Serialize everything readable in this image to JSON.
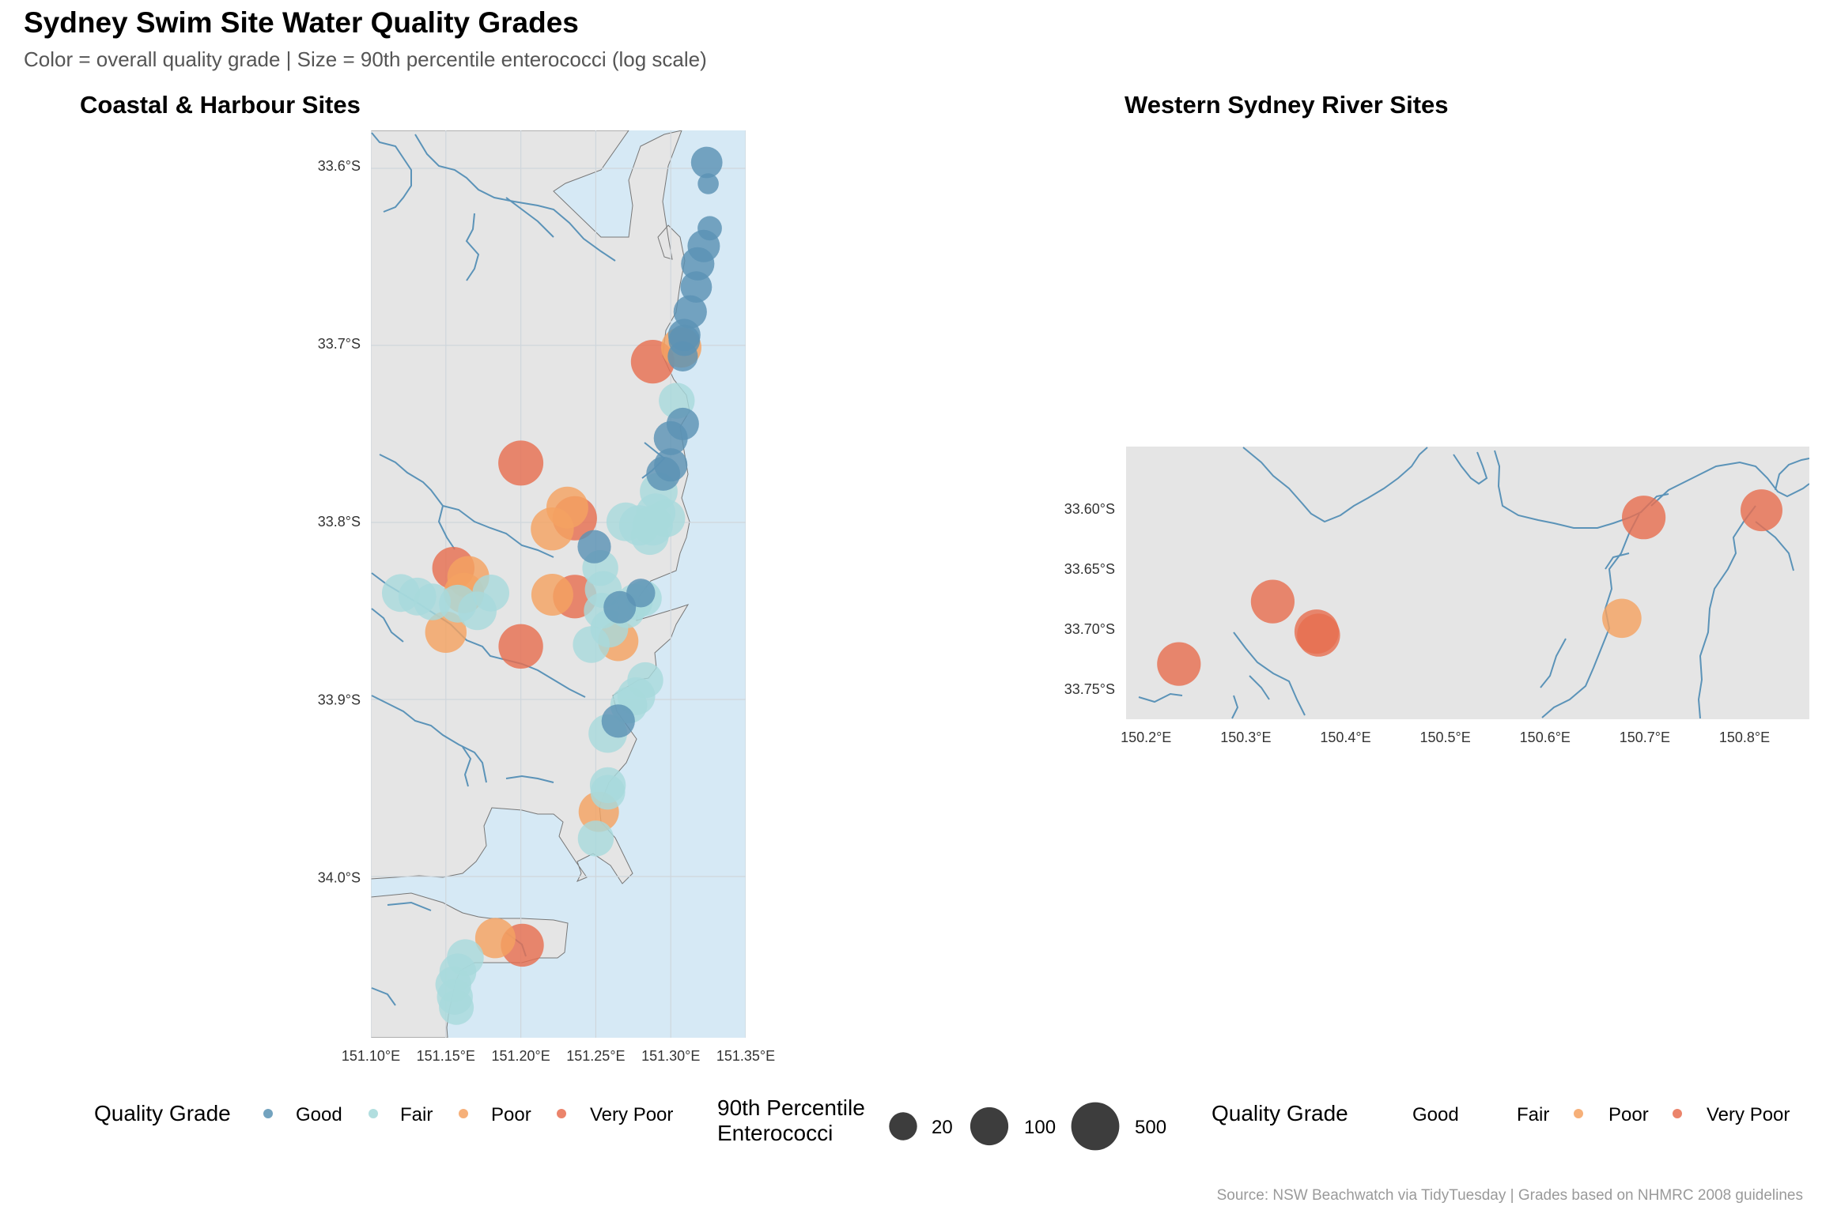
{
  "title": "Sydney Swim Site Water Quality Grades",
  "subtitle": "Color = overall quality grade | Size = 90th percentile enterococci (log scale)",
  "caption": "Source: NSW Beachwatch via TidyTuesday | Grades based on NHMRC 2008 guidelines",
  "colors": {
    "Good": "#5b93b4",
    "Fair": "#a8dadc",
    "Poor": "#f4a261",
    "Very Poor": "#e76f51",
    "land": "#e5e5e5",
    "water": "#d6e9f5",
    "rivers": "#5b93b8",
    "grid": "#cfd6dc"
  },
  "legend": {
    "grade_title": "Quality Grade",
    "grade_labels": [
      "Good",
      "Fair",
      "Poor",
      "Very Poor"
    ],
    "size_title_line1": "90th Percentile",
    "size_title_line2": "Enterococci",
    "size_values": [
      20,
      100,
      500
    ],
    "size_labels": [
      "20",
      "100",
      "500"
    ],
    "grade_title_2": "Quality Grade",
    "grade_labels_2": [
      "Good",
      "Fair",
      "Poor",
      "Very Poor"
    ]
  },
  "chart_data": [
    {
      "type": "scatter",
      "title": "Coastal & Harbour Sites",
      "xlim": [
        151.1,
        151.35
      ],
      "ylim": [
        -34.09,
        -33.58
      ],
      "x_ticks": [
        151.1,
        151.15,
        151.2,
        151.25,
        151.3,
        151.35
      ],
      "x_tick_labels": [
        "151.10°E",
        "151.15°E",
        "151.20°E",
        "151.25°E",
        "151.30°E",
        "151.35°E"
      ],
      "y_ticks": [
        -33.6,
        -33.7,
        -33.8,
        -33.9,
        -34.0
      ],
      "y_tick_labels": [
        "33.6°S",
        "33.7°S",
        "33.8°S",
        "33.9°S",
        "34.0°S"
      ],
      "grid": true,
      "points": [
        {
          "lon": 151.324,
          "lat": -33.598,
          "grade": "Good",
          "ent": 30
        },
        {
          "lon": 151.325,
          "lat": -33.61,
          "grade": "Good",
          "ent": 6
        },
        {
          "lon": 151.326,
          "lat": -33.635,
          "grade": "Good",
          "ent": 10
        },
        {
          "lon": 151.322,
          "lat": -33.645,
          "grade": "Good",
          "ent": 35
        },
        {
          "lon": 151.318,
          "lat": -33.655,
          "grade": "Good",
          "ent": 40
        },
        {
          "lon": 151.317,
          "lat": -33.668,
          "grade": "Good",
          "ent": 30
        },
        {
          "lon": 151.313,
          "lat": -33.682,
          "grade": "Good",
          "ent": 40
        },
        {
          "lon": 151.309,
          "lat": -33.695,
          "grade": "Good",
          "ent": 35
        },
        {
          "lon": 151.307,
          "lat": -33.702,
          "grade": "Poor",
          "ent": 120
        },
        {
          "lon": 151.309,
          "lat": -33.698,
          "grade": "Good",
          "ent": 30
        },
        {
          "lon": 151.308,
          "lat": -33.707,
          "grade": "Good",
          "ent": 25
        },
        {
          "lon": 151.288,
          "lat": -33.71,
          "grade": "Very Poor",
          "ent": 200
        },
        {
          "lon": 151.304,
          "lat": -33.732,
          "grade": "Fair",
          "ent": 60
        },
        {
          "lon": 151.308,
          "lat": -33.745,
          "grade": "Good",
          "ent": 35
        },
        {
          "lon": 151.3,
          "lat": -33.753,
          "grade": "Good",
          "ent": 45
        },
        {
          "lon": 151.3,
          "lat": -33.768,
          "grade": "Good",
          "ent": 40
        },
        {
          "lon": 151.295,
          "lat": -33.773,
          "grade": "Good",
          "ent": 45
        },
        {
          "lon": 151.292,
          "lat": -33.783,
          "grade": "Fair",
          "ent": 80
        },
        {
          "lon": 151.29,
          "lat": -33.795,
          "grade": "Fair",
          "ent": 100
        },
        {
          "lon": 151.297,
          "lat": -33.798,
          "grade": "Fair",
          "ent": 80
        },
        {
          "lon": 151.288,
          "lat": -33.802,
          "grade": "Fair",
          "ent": 120
        },
        {
          "lon": 151.279,
          "lat": -33.802,
          "grade": "Fair",
          "ent": 120
        },
        {
          "lon": 151.27,
          "lat": -33.8,
          "grade": "Fair",
          "ent": 90
        },
        {
          "lon": 151.286,
          "lat": -33.808,
          "grade": "Fair",
          "ent": 80
        },
        {
          "lon": 151.2,
          "lat": -33.767,
          "grade": "Very Poor",
          "ent": 250
        },
        {
          "lon": 151.231,
          "lat": -33.792,
          "grade": "Poor",
          "ent": 150
        },
        {
          "lon": 151.236,
          "lat": -33.798,
          "grade": "Very Poor",
          "ent": 220
        },
        {
          "lon": 151.221,
          "lat": -33.804,
          "grade": "Poor",
          "ent": 180
        },
        {
          "lon": 151.249,
          "lat": -33.814,
          "grade": "Good",
          "ent": 40
        },
        {
          "lon": 151.253,
          "lat": -33.826,
          "grade": "Fair",
          "ent": 60
        },
        {
          "lon": 151.255,
          "lat": -33.838,
          "grade": "Fair",
          "ent": 70
        },
        {
          "lon": 151.254,
          "lat": -33.85,
          "grade": "Fair",
          "ent": 60
        },
        {
          "lon": 151.259,
          "lat": -33.86,
          "grade": "Fair",
          "ent": 80
        },
        {
          "lon": 151.28,
          "lat": -33.84,
          "grade": "Good",
          "ent": 20
        },
        {
          "lon": 151.266,
          "lat": -33.848,
          "grade": "Good",
          "ent": 35
        },
        {
          "lon": 151.276,
          "lat": -33.845,
          "grade": "Fair",
          "ent": 60
        },
        {
          "lon": 151.282,
          "lat": -33.843,
          "grade": "Fair",
          "ent": 60
        },
        {
          "lon": 151.271,
          "lat": -33.85,
          "grade": "Fair",
          "ent": 50
        },
        {
          "lon": 151.221,
          "lat": -33.841,
          "grade": "Poor",
          "ent": 150
        },
        {
          "lon": 151.236,
          "lat": -33.842,
          "grade": "Very Poor",
          "ent": 200
        },
        {
          "lon": 151.155,
          "lat": -33.826,
          "grade": "Very Poor",
          "ent": 160
        },
        {
          "lon": 151.165,
          "lat": -33.831,
          "grade": "Poor",
          "ent": 150
        },
        {
          "lon": 151.162,
          "lat": -33.84,
          "grade": "Poor",
          "ent": 120
        },
        {
          "lon": 151.158,
          "lat": -33.846,
          "grade": "Fair",
          "ent": 80
        },
        {
          "lon": 151.18,
          "lat": -33.84,
          "grade": "Fair",
          "ent": 70
        },
        {
          "lon": 151.12,
          "lat": -33.84,
          "grade": "Fair",
          "ent": 80
        },
        {
          "lon": 151.131,
          "lat": -33.842,
          "grade": "Fair",
          "ent": 80
        },
        {
          "lon": 151.141,
          "lat": -33.845,
          "grade": "Fair",
          "ent": 70
        },
        {
          "lon": 151.171,
          "lat": -33.85,
          "grade": "Fair",
          "ent": 90
        },
        {
          "lon": 151.15,
          "lat": -33.862,
          "grade": "Poor",
          "ent": 140
        },
        {
          "lon": 151.2,
          "lat": -33.87,
          "grade": "Very Poor",
          "ent": 230
        },
        {
          "lon": 151.265,
          "lat": -33.867,
          "grade": "Poor",
          "ent": 120
        },
        {
          "lon": 151.247,
          "lat": -33.869,
          "grade": "Fair",
          "ent": 70
        },
        {
          "lon": 151.283,
          "lat": -33.889,
          "grade": "Fair",
          "ent": 60
        },
        {
          "lon": 151.277,
          "lat": -33.898,
          "grade": "Fair",
          "ent": 80
        },
        {
          "lon": 151.272,
          "lat": -33.903,
          "grade": "Fair",
          "ent": 70
        },
        {
          "lon": 151.265,
          "lat": -33.912,
          "grade": "Good",
          "ent": 40
        },
        {
          "lon": 151.258,
          "lat": -33.919,
          "grade": "Fair",
          "ent": 90
        },
        {
          "lon": 151.258,
          "lat": -33.948,
          "grade": "Fair",
          "ent": 60
        },
        {
          "lon": 151.258,
          "lat": -33.952,
          "grade": "Fair",
          "ent": 50
        },
        {
          "lon": 151.252,
          "lat": -33.963,
          "grade": "Poor",
          "ent": 120
        },
        {
          "lon": 151.25,
          "lat": -33.978,
          "grade": "Fair",
          "ent": 60
        },
        {
          "lon": 151.183,
          "lat": -34.034,
          "grade": "Poor",
          "ent": 120
        },
        {
          "lon": 151.201,
          "lat": -34.038,
          "grade": "Very Poor",
          "ent": 180
        },
        {
          "lon": 151.163,
          "lat": -34.045,
          "grade": "Fair",
          "ent": 70
        },
        {
          "lon": 151.158,
          "lat": -34.053,
          "grade": "Fair",
          "ent": 70
        },
        {
          "lon": 151.155,
          "lat": -34.06,
          "grade": "Fair",
          "ent": 60
        },
        {
          "lon": 151.156,
          "lat": -34.067,
          "grade": "Fair",
          "ent": 60
        },
        {
          "lon": 151.157,
          "lat": -34.073,
          "grade": "Fair",
          "ent": 50
        }
      ]
    },
    {
      "type": "scatter",
      "title": "Western Sydney River Sites",
      "xlim": [
        150.18,
        150.865
      ],
      "ylim": [
        -33.775,
        -33.548
      ],
      "x_ticks": [
        150.2,
        150.3,
        150.4,
        150.5,
        150.6,
        150.7,
        150.8
      ],
      "x_tick_labels": [
        "150.2°E",
        "150.3°E",
        "150.4°E",
        "150.5°E",
        "150.6°E",
        "150.7°E",
        "150.8°E"
      ],
      "y_ticks": [
        -33.6,
        -33.65,
        -33.7,
        -33.75
      ],
      "y_tick_labels": [
        "33.60°S",
        "33.65°S",
        "33.70°S",
        "33.75°S"
      ],
      "grid": false,
      "points": [
        {
          "lon": 150.233,
          "lat": -33.729,
          "grade": "Very Poor",
          "ent": 200
        },
        {
          "lon": 150.327,
          "lat": -33.677,
          "grade": "Very Poor",
          "ent": 200
        },
        {
          "lon": 150.371,
          "lat": -33.702,
          "grade": "Very Poor",
          "ent": 220
        },
        {
          "lon": 150.373,
          "lat": -33.705,
          "grade": "Very Poor",
          "ent": 180
        },
        {
          "lon": 150.677,
          "lat": -33.691,
          "grade": "Poor",
          "ent": 100
        },
        {
          "lon": 150.699,
          "lat": -33.607,
          "grade": "Very Poor",
          "ent": 200
        },
        {
          "lon": 150.817,
          "lat": -33.601,
          "grade": "Very Poor",
          "ent": 150
        }
      ]
    }
  ]
}
